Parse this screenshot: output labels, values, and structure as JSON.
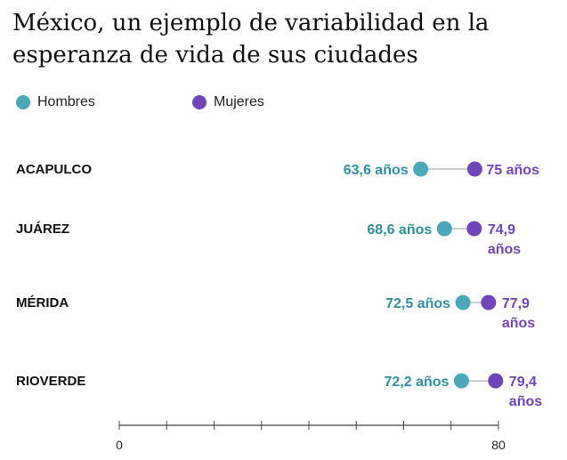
{
  "chart_data": {
    "type": "dumbbell",
    "title": "México, un ejemplo de variabilidad en la esperanza de vida de sus ciudades",
    "legend": [
      {
        "name": "Hombres",
        "color": "#4aa8b8"
      },
      {
        "name": "Mujeres",
        "color": "#6f45b8"
      }
    ],
    "xlim": [
      0,
      80
    ],
    "x_ticks": [
      0,
      80
    ],
    "unit_label": "años",
    "categories": [
      "ACAPULCO",
      "JUÁREZ",
      "MÉRIDA",
      "RIOVERDE"
    ],
    "series": [
      {
        "name": "Hombres",
        "values": [
          63.6,
          68.6,
          72.5,
          72.2
        ],
        "labels": [
          "63,6 años",
          "68,6 años",
          "72,5 años",
          "72,2 años"
        ]
      },
      {
        "name": "Mujeres",
        "values": [
          75,
          74.9,
          77.9,
          79.4
        ],
        "labels": [
          "75 años",
          "74,9 años",
          "77,9 años",
          "79,4 años"
        ]
      }
    ]
  }
}
